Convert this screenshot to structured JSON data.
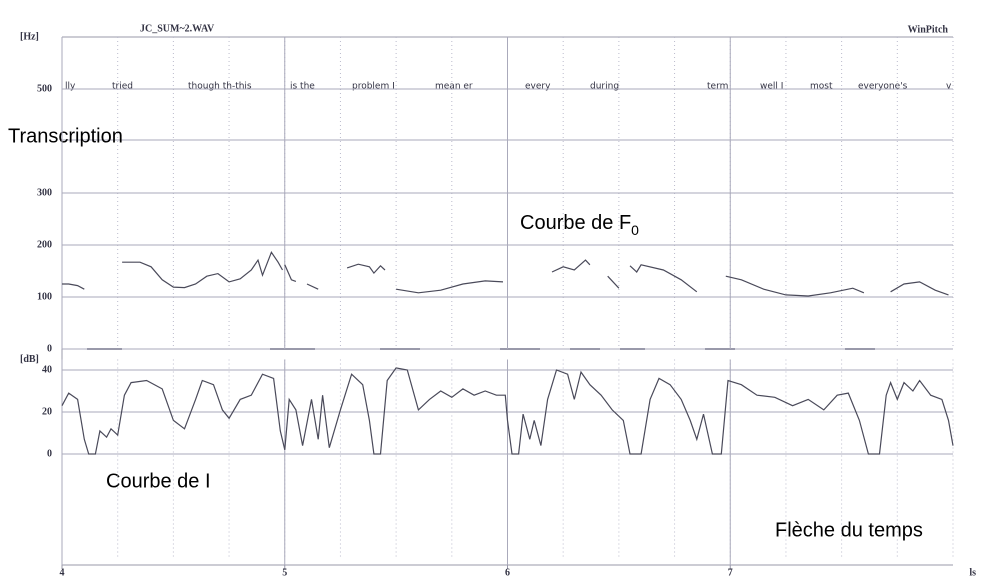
{
  "header": {
    "file": "JC_SUM~2.WAV",
    "app": "WinPitch"
  },
  "annotations": {
    "transcription": "Transcription",
    "f0_curve": "Courbe de F",
    "f0_subscript": "0",
    "intensity_curve": "Courbe de I",
    "time_arrow": "Flèche du temps"
  },
  "transcription": [
    "lly",
    "tried",
    "though th-this",
    "is the",
    "problem I",
    "mean er",
    "every",
    "during",
    "term",
    "well I",
    "most",
    "everyone's",
    "v"
  ],
  "chart_data": [
    {
      "type": "line",
      "y_label": "[Hz]",
      "color": "#4a4a5a",
      "xlim": [
        4,
        8
      ],
      "xticks": [
        4,
        5,
        6,
        7
      ],
      "ylim": [
        0,
        600
      ],
      "yticks": [
        0,
        100,
        200,
        300,
        500
      ],
      "x": [
        4.0,
        4.03,
        4.07,
        4.1,
        4.2,
        4.27,
        4.35,
        4.4,
        4.45,
        4.5,
        4.55,
        4.6,
        4.65,
        4.7,
        4.75,
        4.8,
        4.85,
        4.88,
        4.9,
        4.94,
        4.97,
        4.99,
        5.0,
        5.0,
        5.03,
        5.05,
        5.08,
        5.1,
        5.15,
        5.2,
        5.28,
        5.33,
        5.38,
        5.4,
        5.43,
        5.45,
        5.48,
        5.5,
        5.6,
        5.7,
        5.8,
        5.9,
        5.98,
        6.1,
        6.2,
        6.25,
        6.3,
        6.35,
        6.37,
        6.4,
        6.45,
        6.5,
        6.52,
        6.55,
        6.58,
        6.6,
        6.7,
        6.78,
        6.85,
        6.9,
        6.98,
        7.05,
        7.15,
        7.25,
        7.35,
        7.45,
        7.55,
        7.6,
        7.66,
        7.72,
        7.78,
        7.85,
        7.92,
        7.98
      ],
      "values": [
        125,
        125,
        122,
        115,
        null,
        167,
        167,
        158,
        133,
        119,
        118,
        125,
        140,
        145,
        129,
        135,
        152,
        171,
        142,
        186,
        167,
        152,
        null,
        162,
        133,
        130,
        null,
        125,
        115,
        null,
        156,
        163,
        158,
        146,
        160,
        152,
        null,
        115,
        108,
        113,
        125,
        131,
        129,
        null,
        148,
        158,
        152,
        171,
        162,
        null,
        140,
        117,
        null,
        160,
        148,
        162,
        152,
        133,
        110,
        null,
        140,
        133,
        115,
        104,
        102,
        108,
        117,
        108,
        null,
        110,
        125,
        129,
        113,
        104
      ]
    },
    {
      "type": "line",
      "y_label": "[dB]",
      "x_label": "ls",
      "color": "#4a4a5a",
      "xlim": [
        4,
        8
      ],
      "xticks": [
        4,
        5,
        6,
        7
      ],
      "ylim": [
        -50,
        45
      ],
      "yticks": [
        0,
        20,
        40
      ],
      "x": [
        4.0,
        4.03,
        4.07,
        4.1,
        4.12,
        4.15,
        4.17,
        4.2,
        4.22,
        4.25,
        4.28,
        4.31,
        4.38,
        4.45,
        4.5,
        4.55,
        4.6,
        4.63,
        4.68,
        4.72,
        4.75,
        4.8,
        4.85,
        4.9,
        4.95,
        4.98,
        5.0,
        5.02,
        5.05,
        5.08,
        5.12,
        5.15,
        5.17,
        5.2,
        5.25,
        5.3,
        5.35,
        5.38,
        5.4,
        5.43,
        5.46,
        5.5,
        5.55,
        5.6,
        5.65,
        5.7,
        5.75,
        5.8,
        5.85,
        5.9,
        5.95,
        5.99,
        6.0,
        6.02,
        6.05,
        6.07,
        6.1,
        6.12,
        6.15,
        6.18,
        6.22,
        6.27,
        6.3,
        6.33,
        6.37,
        6.42,
        6.47,
        6.52,
        6.55,
        6.6,
        6.64,
        6.68,
        6.73,
        6.78,
        6.82,
        6.85,
        6.88,
        6.92,
        6.96,
        6.99,
        7.05,
        7.12,
        7.2,
        7.28,
        7.35,
        7.42,
        7.48,
        7.53,
        7.58,
        7.62,
        7.67,
        7.7,
        7.72,
        7.75,
        7.78,
        7.82,
        7.85,
        7.9,
        7.95,
        7.98,
        8.0
      ],
      "values": [
        23,
        29,
        26,
        7,
        0,
        0,
        11,
        8,
        12,
        9,
        28,
        34,
        35,
        31,
        16,
        12,
        26,
        35,
        33,
        21,
        17,
        26,
        28,
        38,
        36,
        11,
        2,
        26,
        21,
        4,
        26,
        7,
        28,
        3,
        21,
        38,
        33,
        16,
        0,
        0,
        35,
        41,
        40,
        21,
        26,
        30,
        27,
        31,
        28,
        30,
        28,
        28,
        16,
        0,
        0,
        19,
        7,
        16,
        4,
        26,
        40,
        38,
        26,
        39,
        33,
        28,
        21,
        16,
        0,
        0,
        26,
        36,
        33,
        26,
        16,
        7,
        19,
        0,
        0,
        35,
        33,
        28,
        27,
        23,
        26,
        21,
        28,
        29,
        16,
        0,
        0,
        28,
        34,
        26,
        34,
        30,
        35,
        28,
        26,
        16,
        4
      ]
    }
  ]
}
